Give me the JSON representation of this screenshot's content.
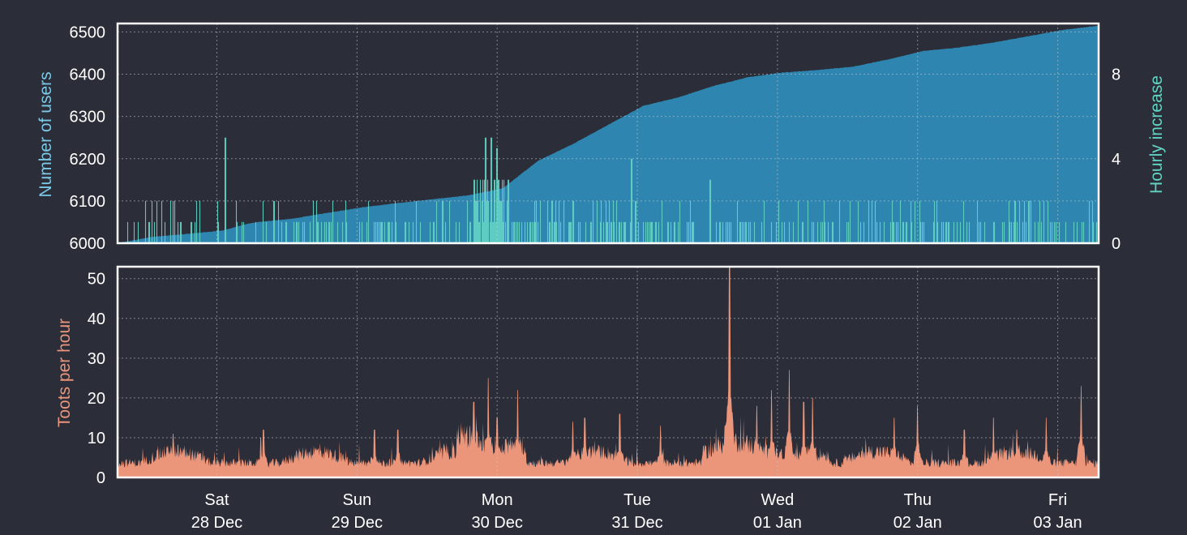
{
  "colors": {
    "background": "#2b2e39",
    "users_fill": "#2e86b0",
    "hourly_fill": "#63d3c3",
    "toots_fill": "#eb957a",
    "frame": "#ffffff",
    "users_label": "#7cc8e6",
    "hourly_label": "#63d3c3",
    "toots_label": "#eb957a"
  },
  "chart_data": [
    {
      "type": "area",
      "ylabel": "Number of users",
      "y2label": "Hourly increase",
      "ylim": [
        6000,
        6520
      ],
      "y2lim": [
        0,
        10.4
      ],
      "yticks": [
        "6000",
        "6100",
        "6200",
        "6300",
        "6400",
        "6500"
      ],
      "y2ticks": [
        "0",
        "4",
        "8"
      ],
      "xlim": [
        0,
        168
      ],
      "grid": true,
      "series": [
        {
          "kind": "cumulative-area",
          "x": [
            0,
            6,
            12,
            18,
            22,
            24,
            30,
            36,
            42,
            48,
            54,
            60,
            66,
            72,
            78,
            84,
            90,
            96,
            102,
            108,
            114,
            120,
            126,
            132,
            138,
            144,
            150,
            156,
            162,
            168
          ],
          "values": [
            6000,
            6015,
            6022,
            6030,
            6045,
            6050,
            6058,
            6072,
            6085,
            6095,
            6104,
            6113,
            6130,
            6195,
            6235,
            6280,
            6325,
            6345,
            6372,
            6393,
            6404,
            6410,
            6418,
            6435,
            6455,
            6463,
            6475,
            6490,
            6505,
            6515
          ]
        },
        {
          "kind": "hourly-bars",
          "peaks": [
            {
              "x": 18.5,
              "value": 5
            },
            {
              "x": 63,
              "value": 5
            },
            {
              "x": 64,
              "value": 5
            },
            {
              "x": 65,
              "value": 4.5
            },
            {
              "x": 88,
              "value": 4
            },
            {
              "x": 101.5,
              "value": 3
            }
          ]
        }
      ]
    },
    {
      "type": "area",
      "ylabel": "Toots per hour",
      "ylim": [
        0,
        53
      ],
      "yticks": [
        "0",
        "10",
        "20",
        "30",
        "40",
        "50"
      ],
      "xlim": [
        0,
        168
      ],
      "grid": true,
      "series": [
        {
          "kind": "toots-area",
          "peaks": [
            {
              "x": 9.5,
              "value": 11
            },
            {
              "x": 24.5,
              "value": 10
            },
            {
              "x": 25,
              "value": 12
            },
            {
              "x": 44,
              "value": 12
            },
            {
              "x": 48,
              "value": 12
            },
            {
              "x": 61,
              "value": 19
            },
            {
              "x": 63.5,
              "value": 25
            },
            {
              "x": 65,
              "value": 15
            },
            {
              "x": 68.5,
              "value": 22
            },
            {
              "x": 78,
              "value": 14
            },
            {
              "x": 80,
              "value": 15
            },
            {
              "x": 86,
              "value": 16
            },
            {
              "x": 93,
              "value": 13
            },
            {
              "x": 104,
              "value": 13
            },
            {
              "x": 104.8,
              "value": 53
            },
            {
              "x": 109.5,
              "value": 18
            },
            {
              "x": 112,
              "value": 22
            },
            {
              "x": 115,
              "value": 27
            },
            {
              "x": 117.5,
              "value": 19
            },
            {
              "x": 119,
              "value": 20
            },
            {
              "x": 133,
              "value": 15
            },
            {
              "x": 137,
              "value": 18
            },
            {
              "x": 145,
              "value": 12
            },
            {
              "x": 150,
              "value": 15
            },
            {
              "x": 154,
              "value": 12
            },
            {
              "x": 159,
              "value": 15
            },
            {
              "x": 165,
              "value": 23
            }
          ]
        }
      ]
    }
  ],
  "x_axis": {
    "ticks": [
      {
        "x": 17,
        "day": "Sat",
        "date": "28 Dec"
      },
      {
        "x": 41,
        "day": "Sun",
        "date": "29 Dec"
      },
      {
        "x": 65,
        "day": "Mon",
        "date": "30 Dec"
      },
      {
        "x": 89,
        "day": "Tue",
        "date": "31 Dec"
      },
      {
        "x": 113,
        "day": "Wed",
        "date": "01 Jan"
      },
      {
        "x": 137,
        "day": "Thu",
        "date": "02 Jan"
      },
      {
        "x": 161,
        "day": "Fri",
        "date": "03 Jan"
      }
    ]
  }
}
